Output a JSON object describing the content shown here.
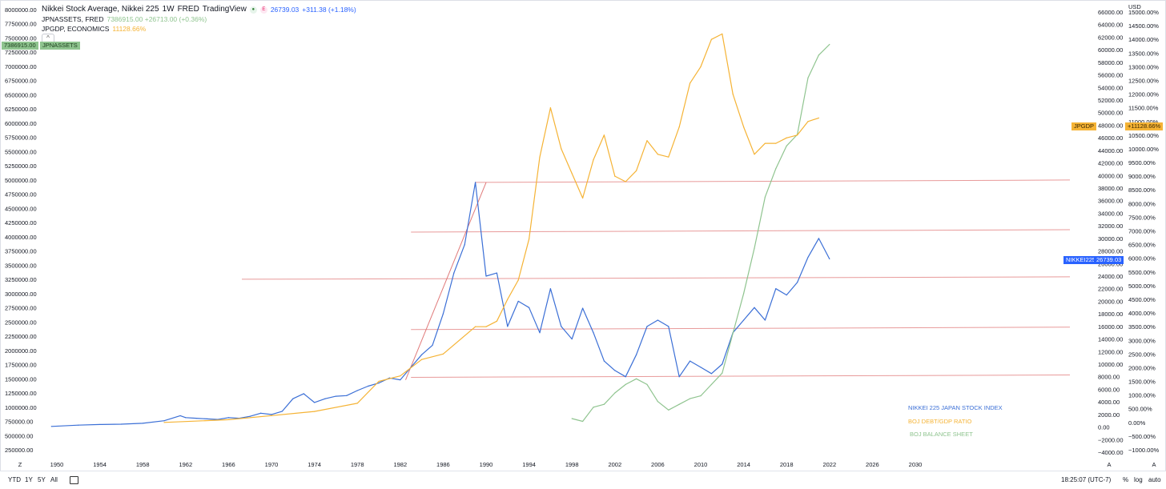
{
  "header": {
    "title": "Nikkei Stock Average, Nikkei 225",
    "interval": "1W",
    "source": "FRED",
    "brand": "TradingView",
    "g_badge": "●",
    "e_badge": "E",
    "main_value": "26739.03",
    "main_change": "+311.38 (+1.18%)"
  },
  "legend": [
    {
      "name": "JPNASSETS, FRED",
      "value": "7386915.00 +26713.00 (+0.36%)",
      "color": "#8fc48f"
    },
    {
      "name": "JPGDP, ECONOMICS",
      "value": "11128.66%",
      "color": "#f5b335"
    }
  ],
  "collapse_icon": "chevron-up-icon",
  "collapse_glyph": "^",
  "price_labels": {
    "assets_value": "7386915.00",
    "assets_name": "JPNASSETS",
    "gdp_name": "JPGDP",
    "gdp_value": "+11128.66%",
    "nikkei_name": "NIKKEI225",
    "nikkei_value": "26739.03"
  },
  "annotations": [
    "NIKKEI 225 JAPAN STOCK INDEX",
    "BOJ DEBT/GDP RATIO",
    "BOJ BALANCE SHEET"
  ],
  "axis_markers": {
    "left_z": "Z",
    "right_a": "A",
    "far_right_a": "A"
  },
  "currency": "USD",
  "bottom_bar": {
    "ranges": [
      "YTD",
      "1Y",
      "5Y",
      "All"
    ],
    "compare_icon": "calendar-range-icon",
    "time": "18:25:07 (UTC-7)",
    "pct": "%",
    "log": "log",
    "auto": "auto"
  },
  "colors": {
    "nikkei": "#3b6fd6",
    "assets": "#8fc48f",
    "gdp": "#f5b335",
    "hline": "#e89a9a",
    "trendline": "#e07a7a"
  },
  "chart_data": {
    "type": "line",
    "x_ticks": [
      "1950",
      "1954",
      "1958",
      "1962",
      "1966",
      "1970",
      "1974",
      "1978",
      "1982",
      "1986",
      "1990",
      "1994",
      "1998",
      "2002",
      "2006",
      "2010",
      "2014",
      "2018",
      "2022",
      "2026",
      "2030"
    ],
    "left_axis": {
      "label": "JPNASSETS",
      "ticks": [
        "8000000.00",
        "7750000.00",
        "7500000.00",
        "7250000.00",
        "7000000.00",
        "6750000.00",
        "6500000.00",
        "6250000.00",
        "6000000.00",
        "5750000.00",
        "5500000.00",
        "5250000.00",
        "5000000.00",
        "4750000.00",
        "4500000.00",
        "4250000.00",
        "4000000.00",
        "3750000.00",
        "3500000.00",
        "3250000.00",
        "3000000.00",
        "2750000.00",
        "2500000.00",
        "2250000.00",
        "2000000.00",
        "1750000.00",
        "1500000.00",
        "1250000.00",
        "1000000.00",
        "750000.00",
        "500000.00",
        "250000.00"
      ],
      "range": [
        250000,
        8000000
      ]
    },
    "mid_axis": {
      "label": "NIKKEI225",
      "ticks": [
        "66000.00",
        "64000.00",
        "62000.00",
        "60000.00",
        "58000.00",
        "56000.00",
        "54000.00",
        "52000.00",
        "50000.00",
        "48000.00",
        "46000.00",
        "44000.00",
        "42000.00",
        "40000.00",
        "38000.00",
        "36000.00",
        "34000.00",
        "32000.00",
        "30000.00",
        "28000.00",
        "26000.00",
        "24000.00",
        "22000.00",
        "20000.00",
        "18000.00",
        "16000.00",
        "14000.00",
        "12000.00",
        "10000.00",
        "8000.00",
        "6000.00",
        "4000.00",
        "2000.00",
        "0.00",
        "−2000.00",
        "−4000.00"
      ],
      "range": [
        -4000,
        66000
      ]
    },
    "right_axis": {
      "label": "JPGDP",
      "ticks": [
        "15000.00%",
        "14500.00%",
        "14000.00%",
        "13500.00%",
        "13000.00%",
        "12500.00%",
        "12000.00%",
        "11500.00%",
        "11000.00%",
        "10500.00%",
        "10000.00%",
        "9500.00%",
        "9000.00%",
        "8500.00%",
        "8000.00%",
        "7500.00%",
        "7000.00%",
        "6500.00%",
        "6000.00%",
        "5500.00%",
        "5000.00%",
        "4500.00%",
        "4000.00%",
        "3500.00%",
        "3000.00%",
        "2500.00%",
        "2000.00%",
        "1500.00%",
        "1000.00%",
        "500.00%",
        "0.00%",
        "−500.00%",
        "−1000.00%"
      ],
      "range": [
        -1000,
        15000
      ]
    },
    "series": [
      {
        "name": "NIKKEI225",
        "axis": "mid",
        "points": [
          [
            1949.5,
            101
          ],
          [
            1952,
            300
          ],
          [
            1954,
            400
          ],
          [
            1956,
            450
          ],
          [
            1958,
            600
          ],
          [
            1960,
            1000
          ],
          [
            1961.5,
            1800
          ],
          [
            1962,
            1500
          ],
          [
            1963,
            1400
          ],
          [
            1964,
            1300
          ],
          [
            1965,
            1200
          ],
          [
            1966,
            1500
          ],
          [
            1967,
            1400
          ],
          [
            1968,
            1700
          ],
          [
            1969,
            2200
          ],
          [
            1970,
            2000
          ],
          [
            1971,
            2500
          ],
          [
            1972,
            4500
          ],
          [
            1973,
            5300
          ],
          [
            1974,
            3900
          ],
          [
            1975,
            4500
          ],
          [
            1976,
            4900
          ],
          [
            1977,
            5000
          ],
          [
            1978,
            5800
          ],
          [
            1979,
            6500
          ],
          [
            1980,
            7000
          ],
          [
            1981,
            7800
          ],
          [
            1982,
            7500
          ],
          [
            1983,
            9500
          ],
          [
            1984,
            11500
          ],
          [
            1985,
            13000
          ],
          [
            1986,
            18000
          ],
          [
            1987,
            24500
          ],
          [
            1988,
            29000
          ],
          [
            1989,
            38900
          ],
          [
            1990,
            24000
          ],
          [
            1991,
            24500
          ],
          [
            1992,
            16000
          ],
          [
            1993,
            20000
          ],
          [
            1994,
            19000
          ],
          [
            1995,
            15000
          ],
          [
            1996,
            22000
          ],
          [
            1997,
            16000
          ],
          [
            1998,
            14000
          ],
          [
            1999,
            18900
          ],
          [
            2000,
            15000
          ],
          [
            2001,
            10500
          ],
          [
            2002,
            9000
          ],
          [
            2003,
            8000
          ],
          [
            2004,
            11500
          ],
          [
            2005,
            16000
          ],
          [
            2006,
            17000
          ],
          [
            2007,
            16000
          ],
          [
            2008,
            8000
          ],
          [
            2009,
            10500
          ],
          [
            2010,
            9500
          ],
          [
            2011,
            8500
          ],
          [
            2012,
            10000
          ],
          [
            2013,
            15000
          ],
          [
            2014,
            17000
          ],
          [
            2015,
            19000
          ],
          [
            2016,
            17000
          ],
          [
            2017,
            22000
          ],
          [
            2018,
            21000
          ],
          [
            2019,
            23000
          ],
          [
            2020,
            27000
          ],
          [
            2021,
            30000
          ],
          [
            2022,
            26739
          ]
        ]
      },
      {
        "name": "JPNASSETS",
        "axis": "left",
        "points": [
          [
            1998,
            800000
          ],
          [
            1999,
            750000
          ],
          [
            2000,
            1000000
          ],
          [
            2001,
            1050000
          ],
          [
            2002,
            1250000
          ],
          [
            2003,
            1400000
          ],
          [
            2004,
            1500000
          ],
          [
            2005,
            1400000
          ],
          [
            2006,
            1100000
          ],
          [
            2007,
            950000
          ],
          [
            2008,
            1050000
          ],
          [
            2009,
            1150000
          ],
          [
            2010,
            1200000
          ],
          [
            2011,
            1400000
          ],
          [
            2012,
            1600000
          ],
          [
            2013,
            2300000
          ],
          [
            2014,
            3000000
          ],
          [
            2015,
            3800000
          ],
          [
            2016,
            4700000
          ],
          [
            2017,
            5200000
          ],
          [
            2018,
            5600000
          ],
          [
            2019,
            5800000
          ],
          [
            2020,
            6800000
          ],
          [
            2021,
            7200000
          ],
          [
            2022,
            7386915
          ]
        ]
      },
      {
        "name": "JPGDP",
        "axis": "right",
        "points": [
          [
            1960,
            0
          ],
          [
            1966,
            100
          ],
          [
            1970,
            250
          ],
          [
            1974,
            400
          ],
          [
            1978,
            700
          ],
          [
            1980,
            1500
          ],
          [
            1982,
            1700
          ],
          [
            1984,
            2300
          ],
          [
            1986,
            2500
          ],
          [
            1989,
            3500
          ],
          [
            1990,
            3500
          ],
          [
            1991,
            3700
          ],
          [
            1992,
            4500
          ],
          [
            1993,
            5200
          ],
          [
            1994,
            6700
          ],
          [
            1995,
            9700
          ],
          [
            1996,
            11500
          ],
          [
            1997,
            10000
          ],
          [
            1998,
            9100
          ],
          [
            1999,
            8200
          ],
          [
            2000,
            9600
          ],
          [
            2001,
            10500
          ],
          [
            2002,
            9000
          ],
          [
            2003,
            8800
          ],
          [
            2004,
            9200
          ],
          [
            2005,
            10300
          ],
          [
            2006,
            9800
          ],
          [
            2007,
            9700
          ],
          [
            2008,
            10800
          ],
          [
            2009,
            12400
          ],
          [
            2010,
            13000
          ],
          [
            2011,
            14000
          ],
          [
            2012,
            14200
          ],
          [
            2013,
            12000
          ],
          [
            2014,
            10800
          ],
          [
            2015,
            9800
          ],
          [
            2016,
            10200
          ],
          [
            2017,
            10200
          ],
          [
            2018,
            10400
          ],
          [
            2019,
            10500
          ],
          [
            2020,
            11000
          ],
          [
            2021,
            11128.66
          ]
        ]
      }
    ],
    "horizontal_lines_nikkei": [
      38900,
      31000,
      23500,
      15500,
      7900
    ],
    "trendline": [
      [
        1982.5,
        7500
      ],
      [
        1990,
        38900
      ]
    ],
    "grid": false
  }
}
